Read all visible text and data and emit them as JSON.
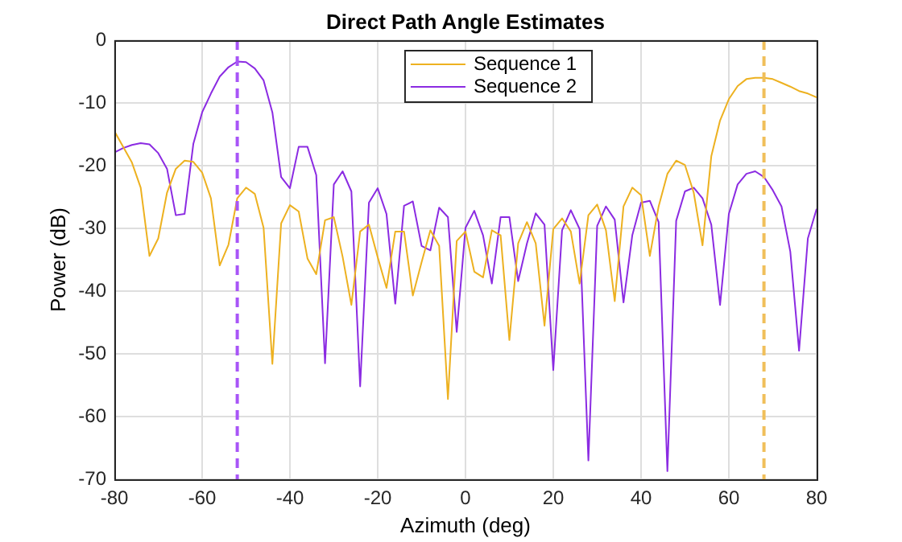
{
  "chart_data": {
    "type": "line",
    "title": "Direct Path Angle Estimates",
    "xlabel": "Azimuth (deg)",
    "ylabel": "Power (dB)",
    "x": [
      -80,
      -78,
      -76,
      -74,
      -72,
      -70,
      -68,
      -66,
      -64,
      -62,
      -60,
      -58,
      -56,
      -54,
      -52,
      -50,
      -48,
      -46,
      -44,
      -42,
      -40,
      -38,
      -36,
      -34,
      -32,
      -30,
      -28,
      -26,
      -24,
      -22,
      -20,
      -18,
      -16,
      -14,
      -12,
      -10,
      -8,
      -6,
      -4,
      -2,
      0,
      2,
      4,
      6,
      8,
      10,
      12,
      14,
      16,
      18,
      20,
      22,
      24,
      26,
      28,
      30,
      32,
      34,
      36,
      38,
      40,
      42,
      44,
      46,
      48,
      50,
      52,
      54,
      56,
      58,
      60,
      62,
      64,
      66,
      68,
      70,
      72,
      74,
      76,
      78,
      80
    ],
    "series": [
      {
        "name": "Sequence 1",
        "color": "#edb120",
        "values": [
          -14.5,
          -17,
          -19.5,
          -23.5,
          -34.4,
          -31.6,
          -24.3,
          -20.5,
          -19.2,
          -19.4,
          -21.1,
          -25.2,
          -35.9,
          -32.6,
          -25.2,
          -23.5,
          -24.5,
          -29.9,
          -51.6,
          -29.2,
          -26.3,
          -27.3,
          -34.8,
          -37.3,
          -28.7,
          -28.2,
          -34.5,
          -42.2,
          -30.5,
          -29.4,
          -34.6,
          -39.5,
          -30.5,
          -30.5,
          -40.7,
          -35.4,
          -30.3,
          -32.8,
          -57.2,
          -32,
          -30.5,
          -36.9,
          -37.8,
          -30.3,
          -31.1,
          -47.8,
          -32.4,
          -29,
          -32.4,
          -45.5,
          -30.1,
          -28.4,
          -30.5,
          -38.8,
          -27.9,
          -26.2,
          -30.3,
          -41.6,
          -26.5,
          -23.5,
          -24.7,
          -34.4,
          -26.5,
          -21.3,
          -19.2,
          -19.9,
          -24.3,
          -32.7,
          -18.5,
          -12.8,
          -9.4,
          -7.3,
          -6.2,
          -6,
          -6,
          -6.2,
          -6.8,
          -7.4,
          -8.1,
          -8.5,
          -9.1
        ]
      },
      {
        "name": "Sequence 2",
        "color": "#8b2be2",
        "values": [
          -17.9,
          -17.2,
          -16.7,
          -16.4,
          -16.6,
          -18,
          -20.5,
          -27.9,
          -27.7,
          -16.5,
          -11.5,
          -8.5,
          -5.8,
          -4.3,
          -3.4,
          -3.5,
          -4.5,
          -6.4,
          -11.5,
          -21.8,
          -23.6,
          -17,
          -17,
          -21.5,
          -51.5,
          -23,
          -20.9,
          -24.1,
          -55.2,
          -25.9,
          -23.6,
          -27.7,
          -42,
          -26.4,
          -25.7,
          -32.8,
          -33.5,
          -26.7,
          -28.2,
          -46.5,
          -29.9,
          -27.2,
          -31.1,
          -38.8,
          -28.2,
          -28.2,
          -38.4,
          -32.4,
          -27.6,
          -29.4,
          -52.6,
          -30.3,
          -27.1,
          -30.1,
          -67,
          -29.6,
          -26.5,
          -28.6,
          -41.8,
          -31.1,
          -25.9,
          -25.6,
          -29,
          -68.7,
          -28.8,
          -24.1,
          -23.5,
          -25.2,
          -29.4,
          -42.2,
          -27.7,
          -23,
          -21.3,
          -20.9,
          -21.8,
          -23.9,
          -26.5,
          -33.7,
          -49.5,
          -31.6,
          -26.9
        ]
      }
    ],
    "xlim": [
      -80,
      80
    ],
    "xticks": [
      -80,
      -60,
      -40,
      -20,
      0,
      20,
      40,
      60,
      80
    ],
    "ylim": [
      -70,
      0
    ],
    "yticks": [
      -70,
      -60,
      -50,
      -40,
      -30,
      -20,
      -10,
      0
    ],
    "ref_lines": [
      {
        "axis": "x",
        "value": -52,
        "color": "#a855f7",
        "line_style": "dashed"
      },
      {
        "axis": "x",
        "value": 68,
        "color": "#f0bf5a",
        "line_style": "dashed"
      }
    ],
    "grid": true,
    "legend": "top",
    "marker": "none",
    "line_style": "solid"
  }
}
